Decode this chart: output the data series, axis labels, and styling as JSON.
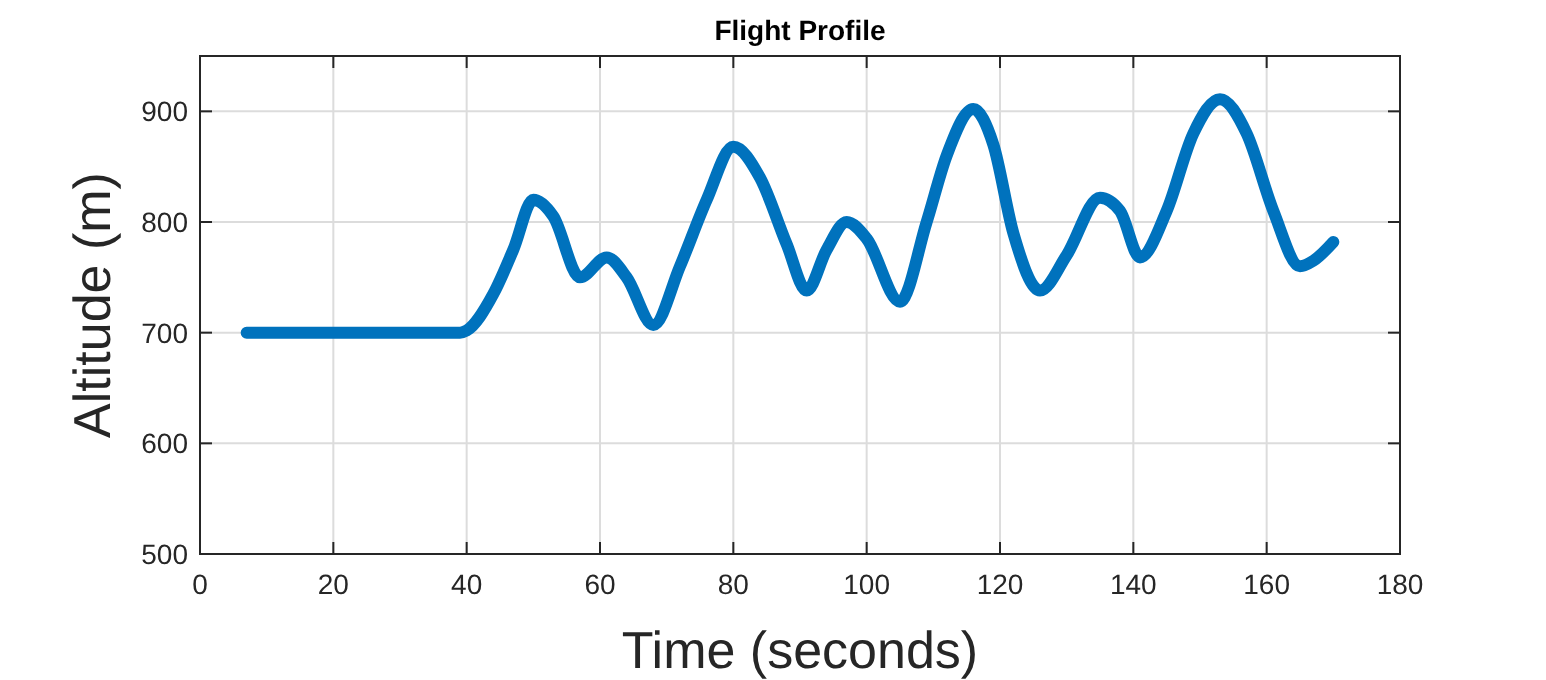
{
  "chart_data": {
    "type": "line",
    "title": "Flight Profile",
    "xlabel": "Time (seconds)",
    "ylabel": "Altitude (m)",
    "x": [
      7,
      39,
      40,
      44,
      47,
      50,
      53,
      57,
      61,
      64,
      68,
      72,
      76,
      80,
      84,
      88,
      91,
      94,
      97,
      100,
      105,
      109,
      112,
      116,
      119,
      122,
      126,
      130,
      135,
      138,
      141,
      145,
      149,
      153,
      157,
      161,
      165,
      167,
      170
    ],
    "series": [
      {
        "color": "#0072bd",
        "values": [
          700,
          700,
          702,
          735,
          775,
          820,
          805,
          750,
          768,
          750,
          707,
          760,
          820,
          868,
          840,
          780,
          738,
          775,
          800,
          785,
          728,
          800,
          860,
          902,
          870,
          790,
          738,
          770,
          822,
          810,
          768,
          810,
          880,
          911,
          880,
          810,
          760,
          765,
          782
        ]
      }
    ],
    "xlim": [
      0,
      180
    ],
    "xticks": [
      0,
      20,
      40,
      60,
      80,
      100,
      120,
      140,
      160,
      180
    ],
    "ylim": [
      500,
      950
    ],
    "yticks": [
      500,
      600,
      700,
      800,
      900
    ],
    "grid": true,
    "line_style": "solid"
  }
}
